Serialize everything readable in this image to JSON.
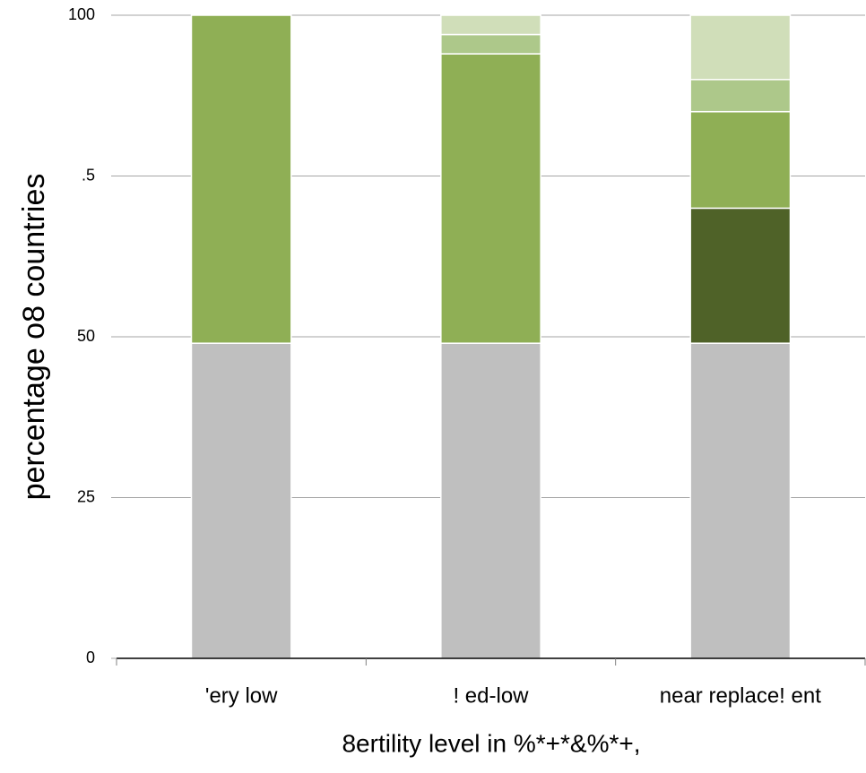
{
  "chart_data": {
    "type": "stacked_bar",
    "x_label": "8ertility level in %*+*&%*+,",
    "y_label": "percentage o8 countries",
    "categories": [
      "'ery low",
      "! ed-low",
      "near replace! ent"
    ],
    "series": [
      {
        "color": "#bfbfbf",
        "values": [
          49,
          49,
          49
        ]
      },
      {
        "color": "#4f6228",
        "values": [
          0,
          0,
          21
        ]
      },
      {
        "color": "#8faf55",
        "values": [
          51,
          45,
          15
        ]
      },
      {
        "color": "#adc88a",
        "values": [
          0,
          3,
          5
        ]
      },
      {
        "color": "#d0deb9",
        "values": [
          0,
          3,
          10
        ]
      }
    ],
    "ylim": [
      0,
      100
    ],
    "yticks": [
      0,
      25,
      50,
      {
        "value": 75,
        "label": ".5"
      },
      100
    ],
    "grid": true
  }
}
